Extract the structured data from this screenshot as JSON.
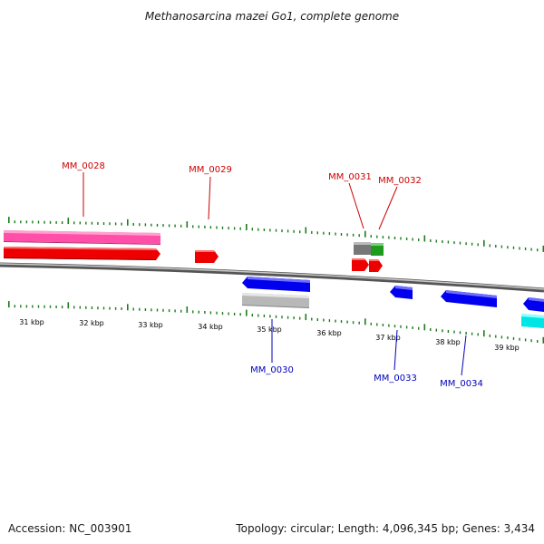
{
  "title": "Methanosarcina mazei Go1, complete genome",
  "footer": {
    "accession": "Accession: NC_003901",
    "summary": "Topology: circular; Length: 4,096,345 bp; Genes: 3,434"
  },
  "colors": {
    "forward_label": "#cc0000",
    "reverse_label": "#0000bb",
    "tick": "#1e7a1e",
    "backbone": "#7a7a7a"
  },
  "ticks": [
    {
      "label": "31 kbp"
    },
    {
      "label": "32 kbp"
    },
    {
      "label": "33 kbp"
    },
    {
      "label": "34 kbp"
    },
    {
      "label": "35 kbp"
    },
    {
      "label": "36 kbp"
    },
    {
      "label": "37 kbp"
    },
    {
      "label": "38 kbp"
    },
    {
      "label": "39 kbp"
    }
  ],
  "gene_labels": [
    {
      "name": "MM_0028",
      "strand": "forward"
    },
    {
      "name": "MM_0029",
      "strand": "forward"
    },
    {
      "name": "MM_0031",
      "strand": "forward"
    },
    {
      "name": "MM_0032",
      "strand": "forward"
    },
    {
      "name": "MM_0030",
      "strand": "reverse"
    },
    {
      "name": "MM_0033",
      "strand": "reverse"
    },
    {
      "name": "MM_0034",
      "strand": "reverse"
    }
  ]
}
